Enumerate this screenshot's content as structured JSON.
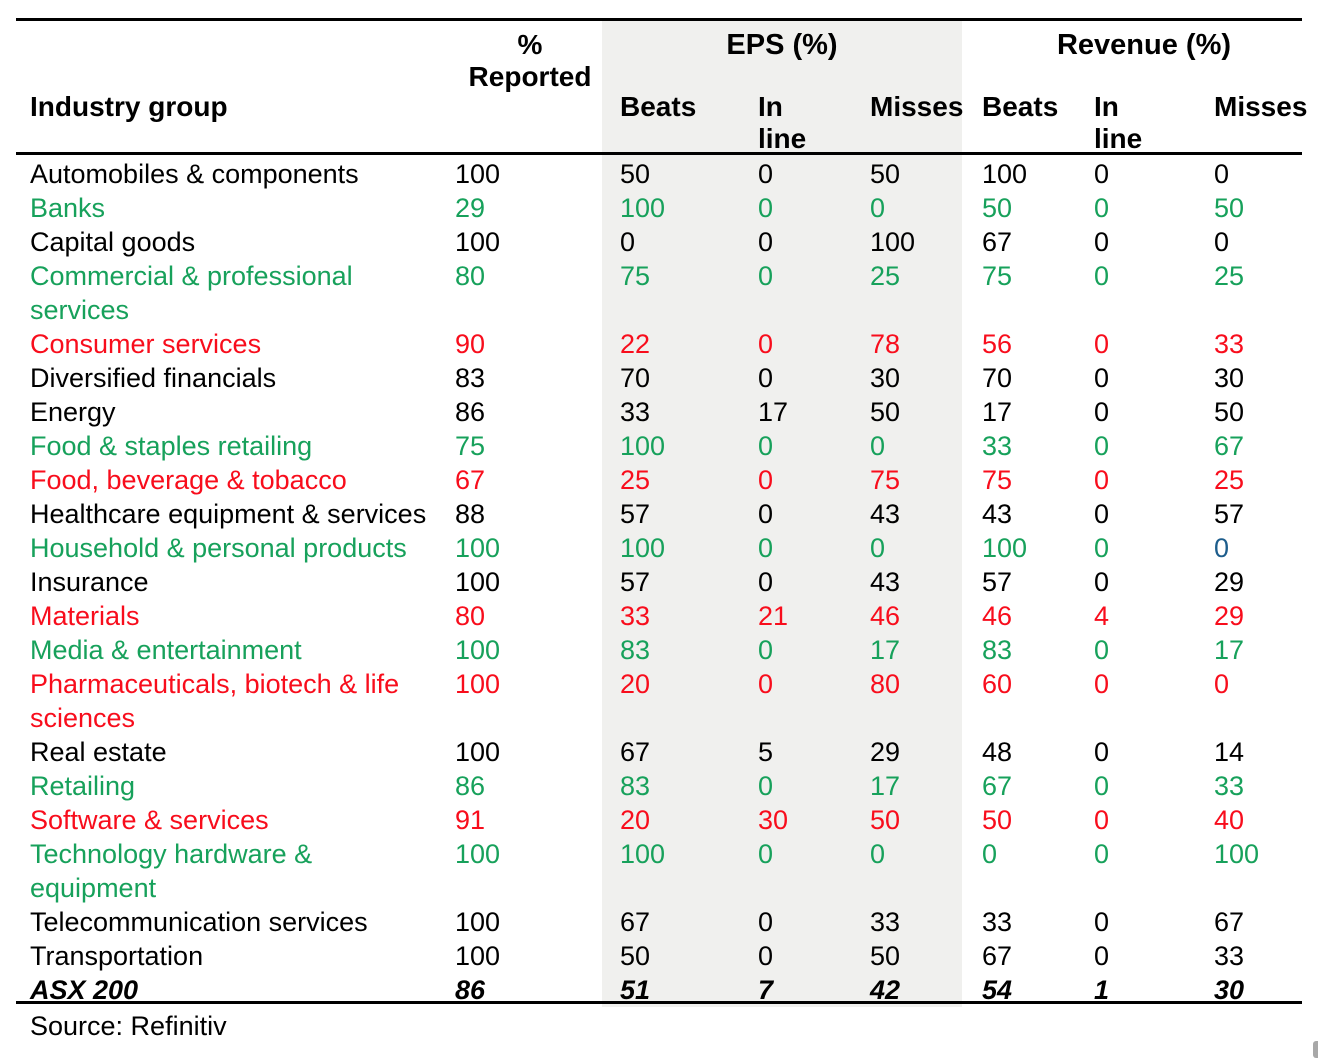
{
  "colors": {
    "green": "#17a15b",
    "red": "#f80d1c",
    "blue": "#1d5d8c",
    "band_gray": "#f0f0ee",
    "border_black": "#000000"
  },
  "header": {
    "industry": "Industry group",
    "reported_line1": "%",
    "reported_line2": "Reported",
    "eps_group": "EPS (%)",
    "revenue_group": "Revenue (%)",
    "eps_beats": "Beats",
    "eps_inline": "In line",
    "eps_misses": "Misses",
    "rev_beats": "Beats",
    "rev_inline": "In line",
    "rev_misses": "Misses"
  },
  "source": "Source: Refinitiv",
  "chart_data": {
    "type": "table",
    "title": "",
    "columns": [
      "Industry group",
      "% Reported",
      "EPS Beats",
      "EPS In line",
      "EPS Misses",
      "Revenue Beats",
      "Revenue In line",
      "Revenue Misses"
    ],
    "rows": [
      {
        "industry": "Automobiles & components",
        "lines": [
          "Automobiles & components"
        ],
        "color": "black",
        "reported": "100",
        "eps": [
          "50",
          "0",
          "50"
        ],
        "rev": [
          "100",
          "0",
          "0"
        ]
      },
      {
        "industry": "Banks",
        "lines": [
          "Banks"
        ],
        "color": "green",
        "reported": "29",
        "eps": [
          "100",
          "0",
          "0"
        ],
        "rev": [
          "50",
          "0",
          "50"
        ]
      },
      {
        "industry": "Capital goods",
        "lines": [
          "Capital goods"
        ],
        "color": "black",
        "reported": "100",
        "eps": [
          "0",
          "0",
          "100"
        ],
        "rev": [
          "67",
          "0",
          "0"
        ]
      },
      {
        "industry": "Commercial & professional services",
        "lines": [
          "Commercial & professional",
          "services"
        ],
        "color": "green",
        "reported": "80",
        "eps": [
          "75",
          "0",
          "25"
        ],
        "rev": [
          "75",
          "0",
          "25"
        ]
      },
      {
        "industry": "Consumer services",
        "lines": [
          "Consumer services"
        ],
        "color": "red",
        "reported": "90",
        "eps": [
          "22",
          "0",
          "78"
        ],
        "rev": [
          "56",
          "0",
          "33"
        ]
      },
      {
        "industry": "Diversified financials",
        "lines": [
          "Diversified financials"
        ],
        "color": "black",
        "reported": "83",
        "eps": [
          "70",
          "0",
          "30"
        ],
        "rev": [
          "70",
          "0",
          "30"
        ]
      },
      {
        "industry": "Energy",
        "lines": [
          "Energy"
        ],
        "color": "black",
        "reported": "86",
        "eps": [
          "33",
          "17",
          "50"
        ],
        "rev": [
          "17",
          "0",
          "50"
        ]
      },
      {
        "industry": "Food & staples retailing",
        "lines": [
          "Food & staples retailing"
        ],
        "color": "green",
        "reported": "75",
        "eps": [
          "100",
          "0",
          "0"
        ],
        "rev": [
          "33",
          "0",
          "67"
        ]
      },
      {
        "industry": "Food, beverage & tobacco",
        "lines": [
          "Food, beverage & tobacco"
        ],
        "color": "red",
        "reported": "67",
        "eps": [
          "25",
          "0",
          "75"
        ],
        "rev": [
          "75",
          "0",
          "25"
        ]
      },
      {
        "industry": "Healthcare equipment & services",
        "lines": [
          "Healthcare equipment & services"
        ],
        "color": "black",
        "reported": "88",
        "eps": [
          "57",
          "0",
          "43"
        ],
        "rev": [
          "43",
          "0",
          "57"
        ]
      },
      {
        "industry": "Household & personal products",
        "lines": [
          "Household & personal products"
        ],
        "color": "green",
        "reported": "100",
        "eps": [
          "100",
          "0",
          "0"
        ],
        "rev": [
          "100",
          "0",
          "0"
        ],
        "value_colors": [
          null,
          null,
          null,
          null,
          null,
          null,
          "blue"
        ]
      },
      {
        "industry": "Insurance",
        "lines": [
          "Insurance"
        ],
        "color": "black",
        "reported": "100",
        "eps": [
          "57",
          "0",
          "43"
        ],
        "rev": [
          "57",
          "0",
          "29"
        ]
      },
      {
        "industry": "Materials",
        "lines": [
          "Materials"
        ],
        "color": "red",
        "reported": "80",
        "eps": [
          "33",
          "21",
          "46"
        ],
        "rev": [
          "46",
          "4",
          "29"
        ]
      },
      {
        "industry": "Media & entertainment",
        "lines": [
          "Media & entertainment"
        ],
        "color": "green",
        "reported": "100",
        "eps": [
          "83",
          "0",
          "17"
        ],
        "rev": [
          "83",
          "0",
          "17"
        ]
      },
      {
        "industry": "Pharmaceuticals, biotech & life sciences",
        "lines": [
          "Pharmaceuticals, biotech & life",
          "sciences"
        ],
        "color": "red",
        "reported": "100",
        "eps": [
          "20",
          "0",
          "80"
        ],
        "rev": [
          "60",
          "0",
          "0"
        ]
      },
      {
        "industry": "Real estate",
        "lines": [
          "Real estate"
        ],
        "color": "black",
        "reported": "100",
        "eps": [
          "67",
          "5",
          "29"
        ],
        "rev": [
          "48",
          "0",
          "14"
        ]
      },
      {
        "industry": "Retailing",
        "lines": [
          "Retailing"
        ],
        "color": "green",
        "reported": "86",
        "eps": [
          "83",
          "0",
          "17"
        ],
        "rev": [
          "67",
          "0",
          "33"
        ]
      },
      {
        "industry": "Software & services",
        "lines": [
          "Software & services"
        ],
        "color": "red",
        "reported": "91",
        "eps": [
          "20",
          "30",
          "50"
        ],
        "rev": [
          "50",
          "0",
          "40"
        ]
      },
      {
        "industry": "Technology hardware & equipment",
        "lines": [
          "Technology hardware &",
          "equipment"
        ],
        "color": "green",
        "reported": "100",
        "eps": [
          "100",
          "0",
          "0"
        ],
        "rev": [
          "0",
          "0",
          "100"
        ]
      },
      {
        "industry": "Telecommunication services",
        "lines": [
          "Telecommunication services"
        ],
        "color": "black",
        "reported": "100",
        "eps": [
          "67",
          "0",
          "33"
        ],
        "rev": [
          "33",
          "0",
          "67"
        ]
      },
      {
        "industry": "Transportation",
        "lines": [
          "Transportation"
        ],
        "color": "black",
        "reported": "100",
        "eps": [
          "50",
          "0",
          "50"
        ],
        "rev": [
          "67",
          "0",
          "33"
        ]
      },
      {
        "industry": "ASX 200",
        "lines": [
          "ASX 200"
        ],
        "color": "black",
        "total": true,
        "reported": "86",
        "eps": [
          "51",
          "7",
          "42"
        ],
        "rev": [
          "54",
          "1",
          "30"
        ]
      }
    ]
  }
}
